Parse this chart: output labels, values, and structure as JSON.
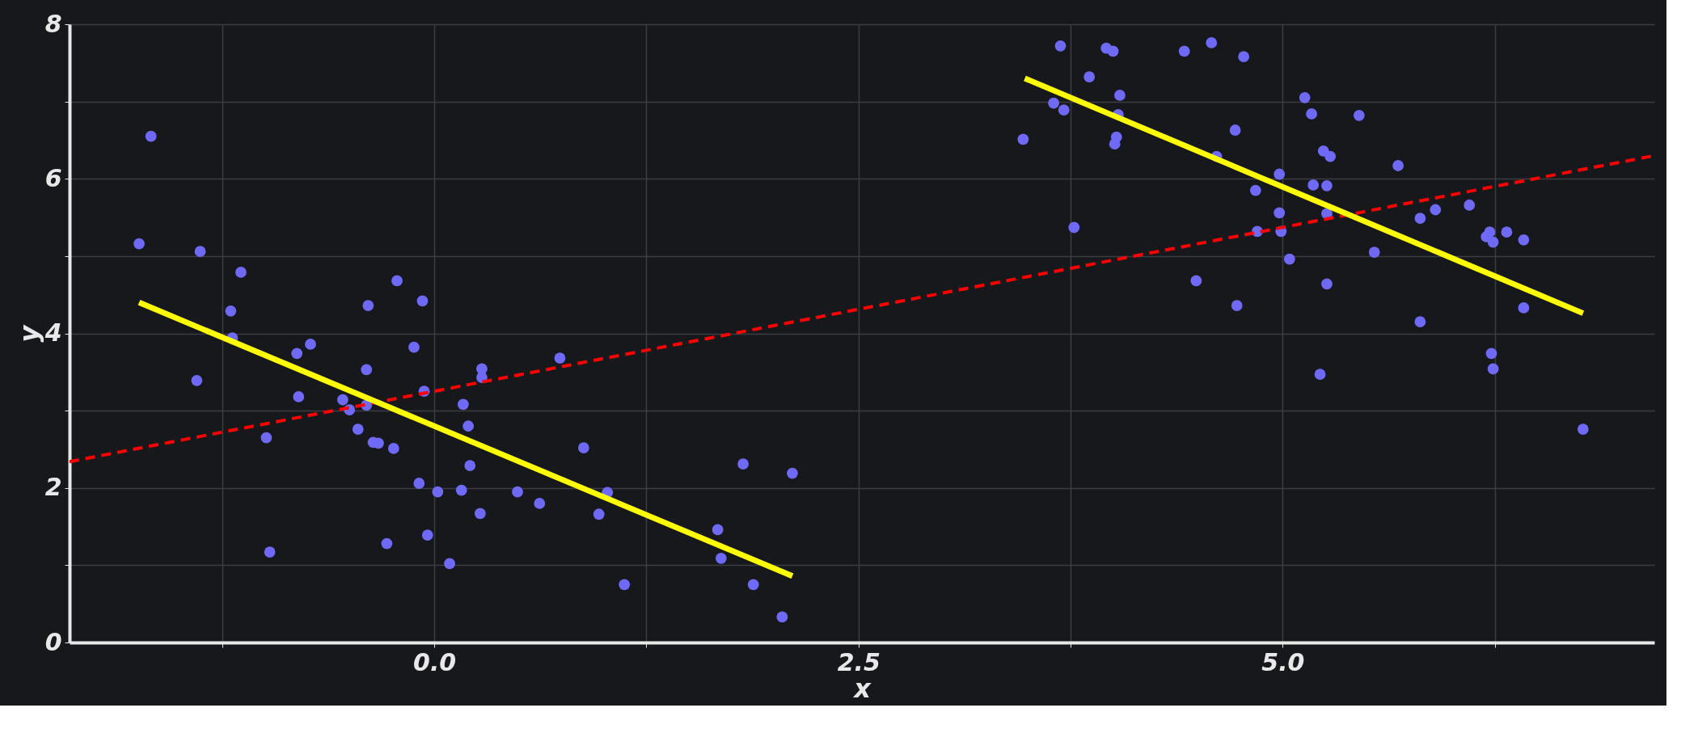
{
  "chart_data": {
    "type": "scatter",
    "xlabel": "x",
    "ylabel": "y",
    "xlim": [
      -2.15,
      7.19
    ],
    "ylim": [
      0,
      8
    ],
    "xticks": [
      {
        "value": -1.25,
        "label": null
      },
      {
        "value": 0,
        "label": "0.0"
      },
      {
        "value": 1.25,
        "label": null
      },
      {
        "value": 2.5,
        "label": "2.5"
      },
      {
        "value": 3.75,
        "label": null
      },
      {
        "value": 5,
        "label": "5.0"
      },
      {
        "value": 6.25,
        "label": null
      }
    ],
    "yticks": [
      0,
      {
        "value": 1,
        "label": null
      },
      2,
      {
        "value": 3,
        "label": null
      },
      4,
      {
        "value": 5,
        "label": null
      },
      6,
      {
        "value": 7,
        "label": null
      },
      8
    ],
    "grid": true,
    "series": [
      {
        "marker": "circle",
        "color": "#6e6af5",
        "x": [
          -1.67,
          -1.74,
          -1.38,
          -1.14,
          -1.2,
          -1.19,
          -1.4,
          -0.99,
          -0.97,
          -0.81,
          -0.73,
          -0.8,
          -0.54,
          -0.5,
          -0.45,
          -0.4,
          -0.4,
          -0.39,
          -0.36,
          -0.33,
          -0.24,
          -0.28,
          -0.22,
          -0.12,
          -0.07,
          -0.06,
          -0.09,
          -0.04,
          0.02,
          0.09,
          0.17,
          0.2,
          0.16,
          0.21,
          0.27,
          0.28,
          0.28,
          0.49,
          0.62,
          0.74,
          0.88,
          0.97,
          1.02,
          1.12,
          1.67,
          1.69,
          1.82,
          1.88,
          2.05,
          2.11,
          3.47,
          3.65,
          3.69,
          3.71,
          3.77,
          3.86,
          3.96,
          4.0,
          4.04,
          4.03,
          4.02,
          4.01,
          4.42,
          4.58,
          4.77,
          4.49,
          4.61,
          4.72,
          4.73,
          4.84,
          4.85,
          4.98,
          4.98,
          4.99,
          5.04,
          5.13,
          5.17,
          5.18,
          5.22,
          5.24,
          5.28,
          5.26,
          5.26,
          5.26,
          5.45,
          5.54,
          5.68,
          5.81,
          5.9,
          5.81,
          6.1,
          6.2,
          6.22,
          6.24,
          6.32,
          6.23,
          6.24,
          6.42,
          6.42,
          6.77
        ],
        "values": [
          6.55,
          5.16,
          5.06,
          4.79,
          4.29,
          3.94,
          3.39,
          2.65,
          1.17,
          3.74,
          3.86,
          3.18,
          3.14,
          3.01,
          2.76,
          3.07,
          3.53,
          4.36,
          2.59,
          2.58,
          2.51,
          1.28,
          4.68,
          3.82,
          4.42,
          3.25,
          2.06,
          1.39,
          1.95,
          1.02,
          3.08,
          2.8,
          1.97,
          2.29,
          1.67,
          3.54,
          3.43,
          1.95,
          1.8,
          3.68,
          2.52,
          1.66,
          1.94,
          0.75,
          1.46,
          1.09,
          2.31,
          0.75,
          0.33,
          2.19,
          6.51,
          6.98,
          7.72,
          6.89,
          5.37,
          7.32,
          7.69,
          7.65,
          7.08,
          6.83,
          6.54,
          6.45,
          7.65,
          7.76,
          7.58,
          4.68,
          6.29,
          6.63,
          4.36,
          5.85,
          5.32,
          6.06,
          5.56,
          5.32,
          4.96,
          7.05,
          6.84,
          5.92,
          3.47,
          6.36,
          6.29,
          5.91,
          5.55,
          4.64,
          6.82,
          5.05,
          6.17,
          5.49,
          5.6,
          4.15,
          5.66,
          5.25,
          5.31,
          5.18,
          5.31,
          3.74,
          3.54,
          5.21,
          4.33,
          2.76
        ]
      },
      {
        "type": "line",
        "color": "#ff0000",
        "line_style": "dashed",
        "x": [
          -2.15,
          7.19
        ],
        "values": [
          2.34,
          6.3
        ]
      },
      {
        "type": "line",
        "color": "#ffff00",
        "line_style": "solid",
        "x": [
          -1.74,
          2.11
        ],
        "values": [
          4.4,
          0.86
        ]
      },
      {
        "type": "line",
        "color": "#ffff00",
        "line_style": "solid",
        "x": [
          3.48,
          6.77
        ],
        "values": [
          7.3,
          4.26
        ]
      }
    ]
  }
}
